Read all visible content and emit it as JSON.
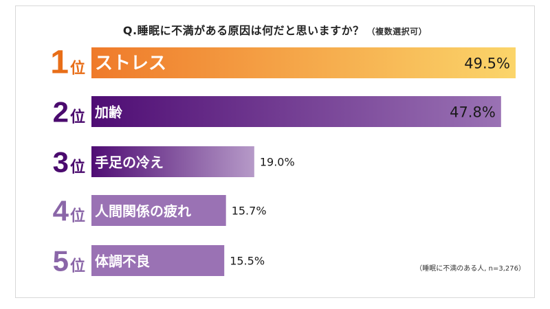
{
  "question": {
    "title": "Q.睡眠に不満がある原因は何だと思いますか？",
    "subtitle": "（複数選択可）"
  },
  "note": "（睡眠に不満のある人, n=3,276）",
  "colors": {
    "rank1_start": "#ef7a2a",
    "rank1_end": "#fbd56a",
    "purple_dark": "#4f0d74",
    "purple_mid": "#9a72b4",
    "purple_light": "#b69ac8",
    "rank_dark": "#4a0a6e",
    "rank_light": "#8a66a8",
    "rank1_text": "#e86e18"
  },
  "chart_data": {
    "type": "bar",
    "orientation": "horizontal",
    "categories": [
      "ストレス",
      "加齢",
      "手足の冷え",
      "人間関係の疲れ",
      "体調不良"
    ],
    "values": [
      49.5,
      47.8,
      19.0,
      15.7,
      15.5
    ],
    "data_labels": [
      "49.5%",
      "47.8%",
      "19.0%",
      "15.7%",
      "15.5%"
    ],
    "ranks": [
      "1",
      "2",
      "3",
      "4",
      "5"
    ],
    "rank_suffix": "位",
    "unit": "%",
    "xlim": [
      0,
      49.5
    ],
    "grid": false,
    "legend": "none"
  }
}
